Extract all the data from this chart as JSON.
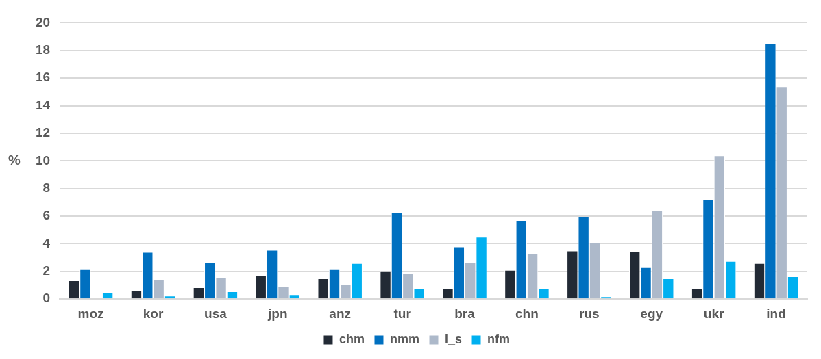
{
  "chart_data": {
    "type": "bar",
    "ylabel": "%",
    "categories": [
      "moz",
      "kor",
      "usa",
      "jpn",
      "anz",
      "tur",
      "bra",
      "chn",
      "rus",
      "egy",
      "ukr",
      "ind"
    ],
    "series": [
      {
        "name": "chm",
        "color": "#222a35",
        "values": [
          1.35,
          0.6,
          0.85,
          1.7,
          1.5,
          2.0,
          0.8,
          2.1,
          3.5,
          3.45,
          0.8,
          2.6
        ]
      },
      {
        "name": "nmm",
        "color": "#0070c0",
        "values": [
          2.15,
          3.4,
          2.65,
          3.55,
          2.15,
          6.3,
          3.8,
          5.7,
          5.95,
          2.3,
          7.2,
          18.5
        ]
      },
      {
        "name": "i_s",
        "color": "#adb9ca",
        "values": [
          0,
          1.4,
          1.6,
          0.9,
          1.05,
          1.85,
          2.65,
          3.3,
          4.1,
          6.4,
          10.4,
          15.4
        ]
      },
      {
        "name": "nfm",
        "color": "#00b0f0",
        "values": [
          0.5,
          0.25,
          0.55,
          0.3,
          2.6,
          0.75,
          4.5,
          0.75,
          0.15,
          1.5,
          2.75,
          1.65
        ]
      }
    ],
    "ylim": [
      0,
      20
    ],
    "yticks": [
      0,
      2,
      4,
      6,
      8,
      10,
      12,
      14,
      16,
      18,
      20
    ],
    "grid": "y",
    "legend": "bottom"
  }
}
